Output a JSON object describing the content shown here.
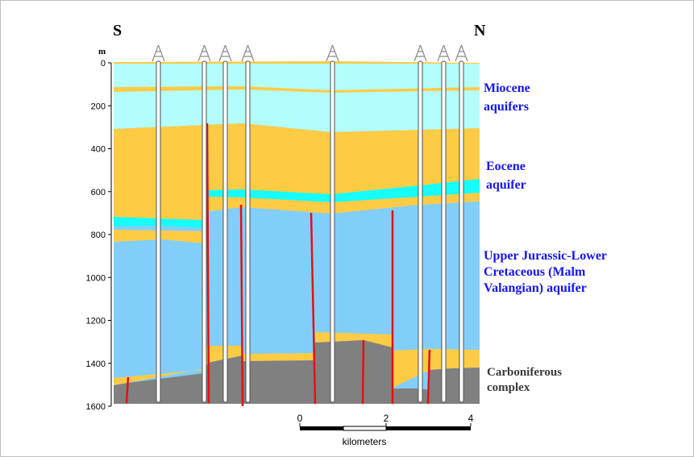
{
  "directions": {
    "left": "S",
    "right": "N"
  },
  "depth_axis": {
    "unit": "m",
    "ticks": [
      "0",
      "200",
      "400",
      "600",
      "800",
      "1000",
      "1200",
      "1400",
      "1600"
    ]
  },
  "labels": {
    "miocene": [
      "Miocene",
      "aquifers"
    ],
    "eocene": [
      "Eocene",
      "aquifer"
    ],
    "jurassic": [
      "Upper Jurassic-Lower",
      "Cretaceous  (Malm",
      "Valangian) aquifer"
    ],
    "carboniferous": [
      "Carboniferous",
      "complex"
    ]
  },
  "scale_bar": {
    "ticks": [
      "0",
      "2",
      "4"
    ],
    "unit_label": "kilometers"
  },
  "colors": {
    "miocene": "#b3fdfd",
    "eocene_clay": "#fecb45",
    "eocene_aquifer": "#17fdfd",
    "jurassic": "#82cefb",
    "carboniferous": "#808080",
    "fault": "#e41111",
    "aquifer_text": "#1515ef",
    "basement_text": "#3a3a3a"
  },
  "well_icon": "derrick-icon"
}
